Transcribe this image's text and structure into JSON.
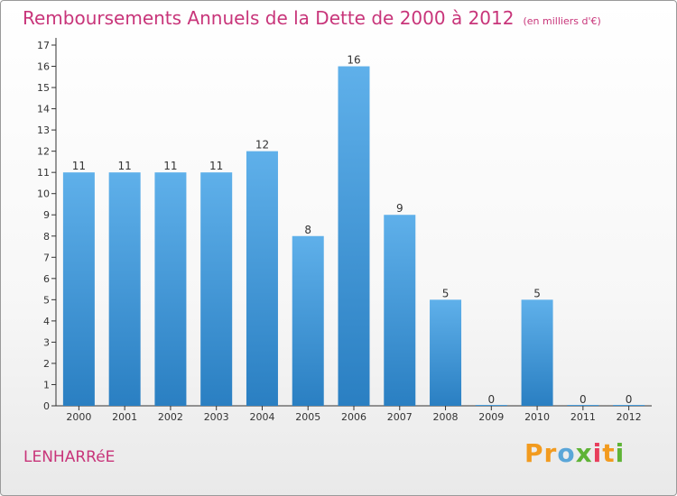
{
  "title": "Remboursements Annuels de la Dette de 2000 à 2012",
  "unit": "(en milliers d'€)",
  "commune": "LENHARRéE",
  "logo": {
    "p": "P",
    "r": "r",
    "o": "o",
    "x": "x",
    "i1": "i",
    "t": "t",
    "i2": "i"
  },
  "colors": {
    "bar_top": "#5fb0ea",
    "bar_bottom": "#2a7fc2",
    "title": "#c8357a"
  },
  "chart_data": {
    "type": "bar",
    "title": "Remboursements Annuels de la Dette de 2000 à 2012",
    "xlabel": "",
    "ylabel": "",
    "categories": [
      "2000",
      "2001",
      "2002",
      "2003",
      "2004",
      "2005",
      "2006",
      "2007",
      "2008",
      "2009",
      "2010",
      "2011",
      "2012"
    ],
    "values": [
      11,
      11,
      11,
      11,
      12,
      8,
      16,
      9,
      5,
      0,
      5,
      0,
      0
    ],
    "ylim": [
      0,
      17
    ],
    "yticks": [
      0,
      1,
      2,
      3,
      4,
      5,
      6,
      7,
      8,
      9,
      10,
      11,
      12,
      13,
      14,
      15,
      16,
      17
    ],
    "grid": false,
    "legend": "none"
  }
}
